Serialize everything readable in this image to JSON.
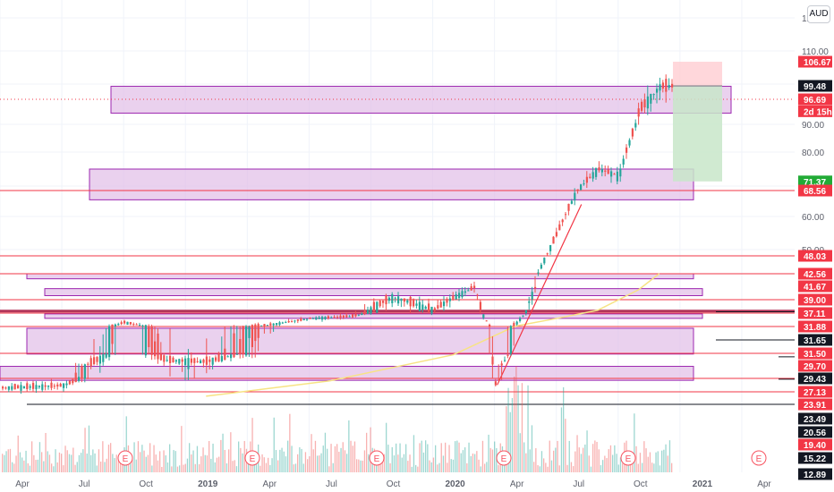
{
  "currency_badge": "AUD",
  "colors": {
    "up": "#26a69a",
    "down": "#ef5350",
    "zone_fill": "#e1bee7",
    "zone_stroke": "#9c27b0",
    "red_line": "#f23645",
    "dark_red_line": "#b2365a",
    "black_line": "#131722",
    "ma_line": "#f7e384",
    "trend_line": "#f23645",
    "target_fill": "#c8e6c9",
    "stop_fill": "#ffcdd2",
    "axis_text": "#131722",
    "grid": "#f0f3fa"
  },
  "chart_data": {
    "type": "candlestick",
    "y_axis_ticks": [
      "120.00",
      "110.00",
      "90.00",
      "80.00",
      "70.00",
      "60.00",
      "50.00"
    ],
    "x_axis_ticks": [
      "Apr",
      "Jul",
      "Oct",
      "2019",
      "Apr",
      "Jul",
      "Oct",
      "2020",
      "Apr",
      "Jul",
      "Oct",
      "2021",
      "Apr"
    ],
    "bold_x_ticks": [
      "2019",
      "2020",
      "2021"
    ],
    "price_tags": [
      {
        "label": "106.67",
        "price": 106.67,
        "style": "red"
      },
      {
        "label": "99.48",
        "price": 99.48,
        "style": "black"
      },
      {
        "label": "96.69",
        "price": 96.69,
        "style": "red"
      },
      {
        "label": "2d 15h",
        "price": 93.5,
        "style": "red"
      },
      {
        "label": "71.37",
        "price": 71.37,
        "style": "green"
      },
      {
        "label": "68.56",
        "price": 68.56,
        "style": "red"
      },
      {
        "label": "48.03",
        "price": 48.03,
        "style": "red"
      },
      {
        "label": "42.56",
        "price": 42.56,
        "style": "red"
      },
      {
        "label": "41.67",
        "price": 41.67,
        "style": "red"
      },
      {
        "label": "39.00",
        "price": 39.0,
        "style": "red"
      },
      {
        "label": "37.11",
        "price": 37.11,
        "style": "red"
      },
      {
        "label": "31.88",
        "price": 31.88,
        "style": "red"
      },
      {
        "label": "31.65",
        "price": 31.65,
        "style": "black"
      },
      {
        "label": "31.50",
        "price": 31.5,
        "style": "red"
      },
      {
        "label": "29.70",
        "price": 29.7,
        "style": "red"
      },
      {
        "label": "29.43",
        "price": 29.43,
        "style": "black"
      },
      {
        "label": "27.13",
        "price": 27.13,
        "style": "red"
      },
      {
        "label": "23.91",
        "price": 23.91,
        "style": "red"
      },
      {
        "label": "23.49",
        "price": 23.49,
        "style": "black"
      },
      {
        "label": "20.56",
        "price": 20.56,
        "style": "black"
      },
      {
        "label": "19.40",
        "price": 19.4,
        "style": "red"
      },
      {
        "label": "15.22",
        "price": 15.22,
        "style": "black"
      },
      {
        "label": "12.89",
        "price": 12.89,
        "style": "black"
      }
    ],
    "earnings_markers": [
      "E",
      "E",
      "E",
      "E",
      "E",
      "E"
    ],
    "x_range": [
      "2018-03",
      "2021-05"
    ],
    "y_range_upper": [
      50,
      120
    ],
    "y_scale": "log-like, compressed below 48",
    "grid": true,
    "volume_pane": true,
    "trade_position": {
      "entry": 99.48,
      "stop": 106.67,
      "target": 71.37
    },
    "series_summary": [
      {
        "date": "2018-03",
        "close": 27.8
      },
      {
        "date": "2018-06",
        "close": 28.2
      },
      {
        "date": "2018-08",
        "close": 31.0
      },
      {
        "date": "2018-09",
        "close": 33.5
      },
      {
        "date": "2018-11",
        "close": 30.5
      },
      {
        "date": "2019-01",
        "close": 30.3
      },
      {
        "date": "2019-04",
        "close": 32.5
      },
      {
        "date": "2019-06",
        "close": 35.0
      },
      {
        "date": "2019-08",
        "close": 35.8
      },
      {
        "date": "2019-10",
        "close": 39.5
      },
      {
        "date": "2019-12",
        "close": 37.5
      },
      {
        "date": "2020-02",
        "close": 41.5
      },
      {
        "date": "2020-03",
        "close": 28.5
      },
      {
        "date": "2020-04",
        "close": 33.0
      },
      {
        "date": "2020-05",
        "close": 42.0
      },
      {
        "date": "2020-06",
        "close": 55.0
      },
      {
        "date": "2020-07",
        "close": 69.0
      },
      {
        "date": "2020-08",
        "close": 75.0
      },
      {
        "date": "2020-09",
        "close": 73.0
      },
      {
        "date": "2020-10",
        "close": 94.0
      },
      {
        "date": "2020-11",
        "close": 99.5
      }
    ]
  }
}
